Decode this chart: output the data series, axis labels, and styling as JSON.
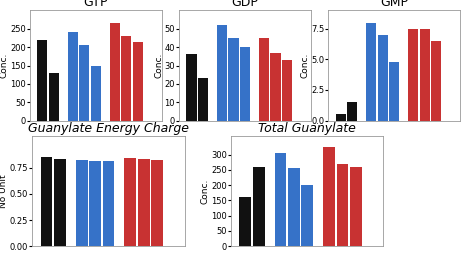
{
  "GTP": {
    "title": "GTP",
    "ylabel": "Conc.",
    "black": [
      220,
      130
    ],
    "blue": [
      240,
      205,
      150
    ],
    "red": [
      265,
      230,
      215
    ],
    "ylim": [
      0,
      300
    ],
    "yticks": [
      0,
      50,
      100,
      150,
      200,
      250
    ],
    "italic_title": false
  },
  "GDP": {
    "title": "GDP",
    "ylabel": "Conc.",
    "black": [
      36,
      23
    ],
    "blue": [
      52,
      45,
      40
    ],
    "red": [
      45,
      37,
      33
    ],
    "ylim": [
      0,
      60
    ],
    "yticks": [
      0,
      10,
      20,
      30,
      40,
      50
    ],
    "italic_title": false
  },
  "GMP": {
    "title": "GMP",
    "ylabel": "Conc.",
    "black": [
      0.5,
      1.5
    ],
    "blue": [
      8.0,
      7.0,
      4.8
    ],
    "red": [
      7.5,
      7.5,
      6.5
    ],
    "ylim": [
      0,
      9
    ],
    "yticks": [
      0.0,
      2.5,
      5.0,
      7.5
    ],
    "italic_title": false
  },
  "GEC": {
    "title": "Guanylate Energy Charge",
    "ylabel": "No Unit",
    "black": [
      0.855,
      0.835
    ],
    "blue": [
      0.82,
      0.815,
      0.815
    ],
    "red": [
      0.84,
      0.83,
      0.82
    ],
    "ylim": [
      0.0,
      1.05
    ],
    "yticks": [
      0.0,
      0.25,
      0.5,
      0.75
    ],
    "italic_title": true
  },
  "TG": {
    "title": "Total Guanylate",
    "ylabel": "Conc.",
    "black": [
      160,
      260
    ],
    "blue": [
      305,
      255,
      200
    ],
    "red": [
      325,
      270,
      260
    ],
    "ylim": [
      0,
      360
    ],
    "yticks": [
      0,
      50,
      100,
      150,
      200,
      250,
      300
    ],
    "italic_title": true
  },
  "colors": {
    "black": "#111111",
    "blue": "#3672c8",
    "red": "#c83232"
  },
  "title_fontsize": 9,
  "label_fontsize": 6.5,
  "tick_fontsize": 6
}
